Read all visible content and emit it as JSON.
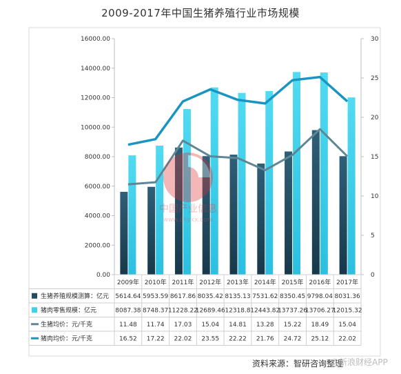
{
  "title": "2009-2017年中国生猪养殖行业市场规模",
  "source": "资料来源：智研咨询整理",
  "watermark": "@新浪财经APP",
  "logo_text": {
    "cn": "中国产业信息",
    "url": "www.chyxx.com"
  },
  "colors": {
    "scale_bar": "#1f4e63",
    "retail_bar": "#3fd0ea",
    "hog_price_line": "#5f8694",
    "pork_price_line": "#1a94c0"
  },
  "chart_data": {
    "type": "bar",
    "categories": [
      "2009年",
      "2010年",
      "2011年",
      "2012年",
      "2013年",
      "2014年",
      "2015年",
      "2016年",
      "2017年"
    ],
    "series": [
      {
        "name": "生猪养殖规模测算：亿元",
        "axis": "left",
        "kind": "bar",
        "color": "#1f4e63",
        "values": [
          5614.64,
          5953.59,
          8617.86,
          8035.42,
          8135.13,
          7531.62,
          8350.45,
          9798.04,
          8031.36
        ],
        "labels": [
          "5614.64",
          "5953.59",
          "8617.86",
          "8035.42",
          "8135.13",
          "7531.62",
          "8350.45",
          "9798.04",
          "8031.36"
        ]
      },
      {
        "name": "猪肉零售规模：亿元",
        "axis": "left",
        "kind": "bar",
        "color": "#3fd0ea",
        "values": [
          8087.38,
          8748.37,
          11228.22,
          12689.46,
          12318.8,
          12443.82,
          13737.26,
          13706.27,
          12015.32
        ],
        "labels": [
          "8087.38",
          "8748.37",
          "11228.22",
          "12689.46",
          "12318.8",
          "12443.82",
          "13737.26",
          "13706.27",
          "12015.32"
        ]
      },
      {
        "name": "生猪均价：元/千克",
        "axis": "right",
        "kind": "line",
        "color": "#5f8694",
        "values": [
          11.48,
          11.74,
          17.03,
          15.04,
          14.81,
          13.28,
          15.22,
          18.49,
          15.04
        ],
        "labels": [
          "11.48",
          "11.74",
          "17.03",
          "15.04",
          "14.81",
          "13.28",
          "15.22",
          "18.49",
          "15.04"
        ]
      },
      {
        "name": "猪肉均价：元/千克",
        "axis": "right",
        "kind": "line",
        "color": "#1a94c0",
        "values": [
          16.52,
          17.22,
          22.02,
          23.55,
          22.22,
          21.76,
          24.72,
          25.12,
          22.02
        ],
        "labels": [
          "16.52",
          "17.22",
          "22.02",
          "23.55",
          "22.22",
          "21.76",
          "24.72",
          "25.12",
          "22.02"
        ]
      }
    ],
    "left_axis": {
      "min": 0,
      "max": 16000,
      "ticks": [
        "0.00",
        "2000.00",
        "4000.00",
        "6000.00",
        "8000.00",
        "10000.00",
        "12000.00",
        "14000.00",
        "16000.00"
      ]
    },
    "right_axis": {
      "min": 0,
      "max": 30,
      "ticks": [
        "0",
        "5",
        "10",
        "15",
        "20",
        "25",
        "30"
      ]
    },
    "legend": "data-table-below"
  }
}
